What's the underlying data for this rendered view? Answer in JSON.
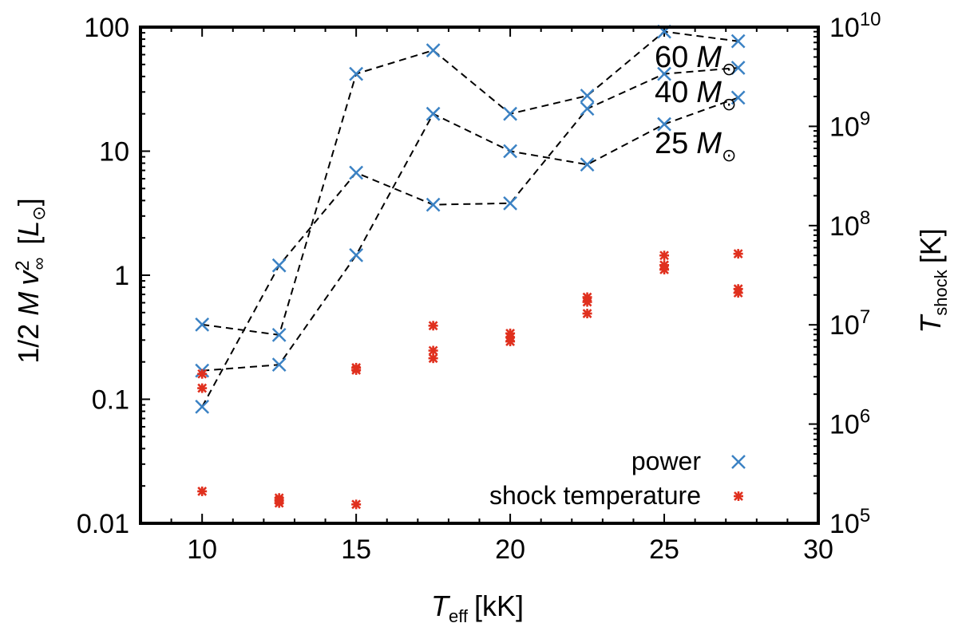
{
  "chart_data": {
    "type": "scatter",
    "xlabel": {
      "main": "T",
      "sub": "eff",
      "unit": "[kK]"
    },
    "ylabel": {
      "prefix": "1/2",
      "mdot": "M",
      "v": "v",
      "sub": "∞",
      "sup": "2",
      "unit_open": "[",
      "unit": "L",
      "unit_sub": "⊙",
      "unit_close": "]"
    },
    "y2label": {
      "main": "T",
      "sub": "shock",
      "unit": "[K]"
    },
    "xlim": [
      8,
      30
    ],
    "ylim": [
      0.01,
      100
    ],
    "y2lim": [
      100000,
      10000000000
    ],
    "yscale": "log",
    "y2scale": "log",
    "x_ticks": [
      10,
      15,
      20,
      25,
      30
    ],
    "x_tick_labels": [
      "10",
      "15",
      "20",
      "25",
      "30"
    ],
    "y_ticks": [
      0.01,
      0.1,
      1,
      10,
      100
    ],
    "y_tick_labels": [
      "0.01",
      "0.1",
      "1",
      "10",
      "100"
    ],
    "y2_ticks": [
      {
        "value": 100000,
        "base": "10",
        "exp": "5"
      },
      {
        "value": 1000000,
        "base": "10",
        "exp": "6"
      },
      {
        "value": 10000000,
        "base": "10",
        "exp": "7"
      },
      {
        "value": 100000000,
        "base": "10",
        "exp": "8"
      },
      {
        "value": 1000000000,
        "base": "10",
        "exp": "9"
      },
      {
        "value": 10000000000,
        "base": "10",
        "exp": "10"
      }
    ],
    "series": [
      {
        "name": "power",
        "axis": "y",
        "marker": "cross",
        "color": "#3b82c4",
        "points": [
          [
            10,
            0.4
          ],
          [
            10,
            0.17
          ],
          [
            10,
            0.087
          ],
          [
            12.5,
            1.2
          ],
          [
            12.5,
            0.33
          ],
          [
            12.5,
            0.19
          ],
          [
            15,
            42
          ],
          [
            15,
            6.7
          ],
          [
            15,
            1.45
          ],
          [
            17.5,
            65
          ],
          [
            17.5,
            20
          ],
          [
            17.5,
            3.7
          ],
          [
            20,
            20
          ],
          [
            20,
            10
          ],
          [
            20,
            3.8
          ],
          [
            22.5,
            28
          ],
          [
            22.5,
            22
          ],
          [
            22.5,
            7.8
          ],
          [
            25,
            92
          ],
          [
            25,
            42
          ],
          [
            25,
            16.5
          ],
          [
            27.4,
            77
          ],
          [
            27.4,
            47
          ],
          [
            27.4,
            27
          ]
        ]
      },
      {
        "name": "shock temperature",
        "axis": "y2",
        "marker": "star",
        "color": "#e0301e",
        "points": [
          [
            10,
            3200000
          ],
          [
            10,
            2300000
          ],
          [
            10,
            210000
          ],
          [
            12.5,
            180000
          ],
          [
            12.5,
            170000
          ],
          [
            12.5,
            160000
          ],
          [
            15,
            3700000
          ],
          [
            15,
            3500000
          ],
          [
            15,
            155000
          ],
          [
            17.5,
            9800000
          ],
          [
            17.5,
            5500000
          ],
          [
            17.5,
            4600000
          ],
          [
            20,
            8200000
          ],
          [
            20,
            7500000
          ],
          [
            20,
            6800000
          ],
          [
            22.5,
            19000000
          ],
          [
            22.5,
            17000000
          ],
          [
            22.5,
            13000000
          ],
          [
            25,
            50000000
          ],
          [
            25,
            40000000
          ],
          [
            25,
            36000000
          ],
          [
            27.4,
            52000000
          ],
          [
            27.4,
            23000000
          ],
          [
            27.4,
            21000000
          ]
        ]
      }
    ],
    "tracks": [
      {
        "label": "60",
        "unit": "M",
        "unit_sub": "⊙",
        "points": [
          [
            10,
            0.4
          ],
          [
            12.5,
            0.33
          ],
          [
            15,
            42
          ],
          [
            17.5,
            65
          ],
          [
            20,
            20
          ],
          [
            22.5,
            28
          ],
          [
            25,
            92
          ],
          [
            27.4,
            77
          ]
        ]
      },
      {
        "label": "40",
        "unit": "M",
        "unit_sub": "⊙",
        "points": [
          [
            10,
            0.087
          ],
          [
            12.5,
            1.2
          ],
          [
            15,
            6.7
          ],
          [
            17.5,
            3.7
          ],
          [
            20,
            3.8
          ],
          [
            22.5,
            22
          ],
          [
            25,
            42
          ],
          [
            27.4,
            47
          ]
        ]
      },
      {
        "label": "25",
        "unit": "M",
        "unit_sub": "⊙",
        "points": [
          [
            10,
            0.17
          ],
          [
            12.5,
            0.19
          ],
          [
            15,
            1.45
          ],
          [
            17.5,
            20
          ],
          [
            20,
            10
          ],
          [
            22.5,
            7.8
          ],
          [
            25,
            16.5
          ],
          [
            27.4,
            27
          ]
        ]
      }
    ],
    "legend": {
      "position": "bottom-right",
      "entries": [
        "power",
        "shock temperature"
      ]
    }
  }
}
